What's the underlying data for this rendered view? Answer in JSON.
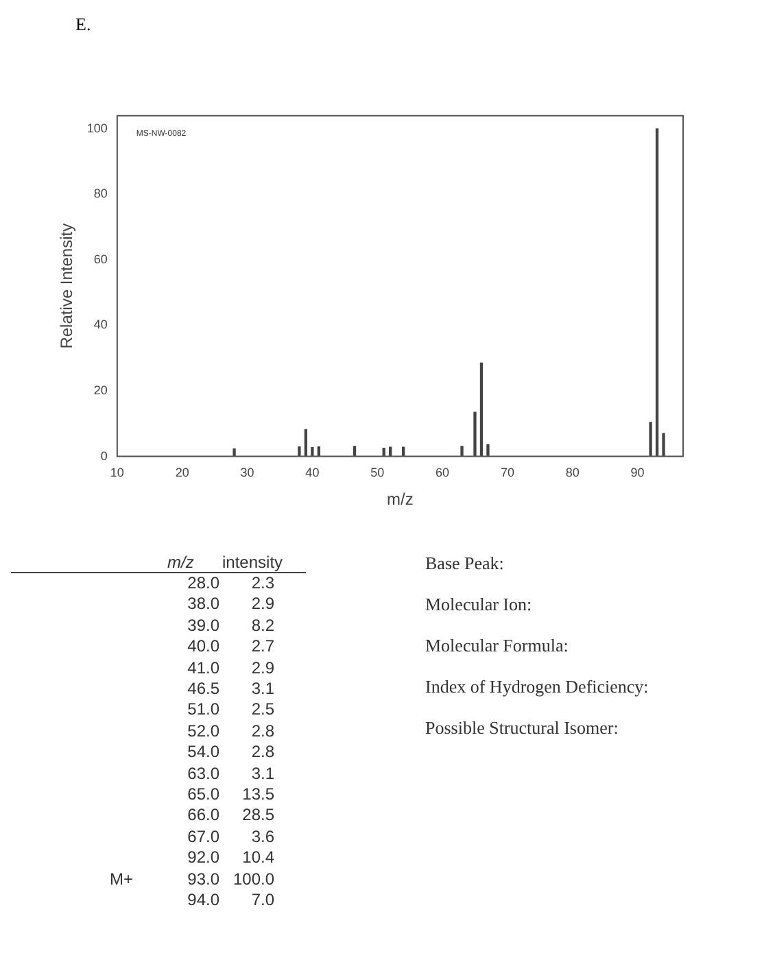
{
  "chart_data": [
    {
      "type": "bar",
      "title": "E.",
      "xlabel": "m/z",
      "ylabel": "Relative Intensity",
      "x": [
        28.0,
        38.0,
        39.0,
        40.0,
        41.0,
        46.5,
        51.0,
        52.0,
        54.0,
        63.0,
        65.0,
        66.0,
        67.0,
        92.0,
        93.0,
        94.0
      ],
      "values": [
        2.3,
        2.9,
        8.2,
        2.7,
        2.9,
        3.1,
        2.5,
        2.8,
        2.8,
        3.1,
        13.5,
        28.5,
        3.6,
        10.4,
        100.0,
        7.0
      ],
      "color": "#444444",
      "xlim": [
        10,
        97
      ],
      "xticks": [
        10,
        20,
        30,
        40,
        50,
        60,
        70,
        80,
        90
      ],
      "ylim": [
        0,
        104
      ],
      "yticks": [
        0,
        20,
        40,
        60,
        80,
        100
      ],
      "grid": false,
      "annotations": [
        "MS-NW-0082"
      ]
    },
    {
      "type": "other",
      "annotations": [
        "m/z",
        "intensity",
        "28.0",
        "2.3",
        "38.0",
        "2.9",
        "39.0",
        "8.2",
        "40.0",
        "2.7",
        "41.0",
        "2.9",
        "46.5",
        "3.1",
        "51.0",
        "2.5",
        "52.0",
        "2.8",
        "54.0",
        "2.8",
        "63.0",
        "3.1",
        "65.0",
        "13.5",
        "66.0",
        "28.5",
        "67.0",
        "3.6",
        "92.0",
        "10.4",
        "93.0",
        "100.0",
        "94.0",
        "7.0",
        "M+",
        "Base Peak:",
        "Molecular Ion:",
        "Molecular Formula:",
        "Index of Hydrogen Deficiency:",
        "Possible Structural Isomer:"
      ]
    }
  ]
}
